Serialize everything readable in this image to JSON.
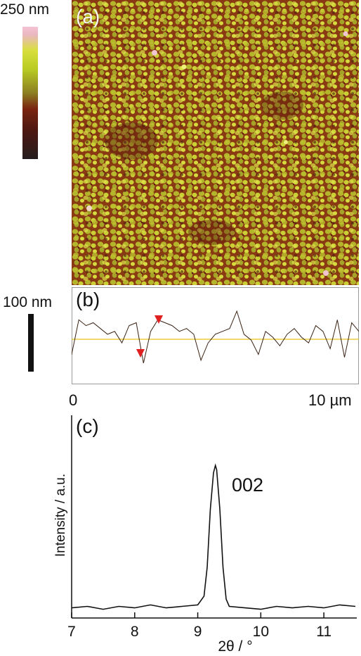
{
  "panel_a": {
    "label": "(a)",
    "colorbar_max_label": "250 nm",
    "colors": {
      "high": "#f6c3d4",
      "mid": "#c8d52c",
      "low": "#7a2510",
      "bottom": "#241d1d"
    }
  },
  "panel_b": {
    "label": "(b)",
    "scale_label": "100 nm",
    "x_start_label": "0",
    "x_end_label": "10 µm",
    "reference_line_color": "#e8c21a",
    "marker_color": "#e02020"
  },
  "panel_c": {
    "label": "(c)",
    "xlabel": "2θ / °",
    "ylabel": "Intensity / a.u.",
    "peak_label": "002"
  },
  "chart_data": [
    {
      "type": "line",
      "title": "",
      "xlabel": "",
      "ylabel": "",
      "x": [
        0,
        0.25,
        0.5,
        0.75,
        1,
        1.25,
        1.5,
        1.75,
        2,
        2.25,
        2.5,
        2.75,
        3,
        3.25,
        3.5,
        3.75,
        4,
        4.25,
        4.5,
        4.75,
        5,
        5.25,
        5.5,
        5.75,
        6,
        6.25,
        6.5,
        6.75,
        7,
        7.25,
        7.5,
        7.75,
        8,
        8.25,
        8.5,
        8.75,
        9,
        9.25,
        9.5,
        9.75,
        10
      ],
      "values": [
        20,
        80,
        70,
        75,
        65,
        55,
        60,
        40,
        70,
        75,
        5,
        60,
        80,
        75,
        70,
        60,
        65,
        55,
        10,
        40,
        55,
        60,
        65,
        95,
        55,
        45,
        20,
        60,
        50,
        35,
        55,
        65,
        50,
        40,
        70,
        60,
        30,
        80,
        15,
        75,
        60
      ],
      "xlim": [
        0,
        10
      ],
      "ylim": [
        0,
        100
      ]
    },
    {
      "type": "line",
      "title": "",
      "xlabel": "2θ / °",
      "ylabel": "Intensity / a.u.",
      "x": [
        7,
        7.25,
        7.5,
        7.75,
        8,
        8.25,
        8.5,
        8.75,
        9,
        9.1,
        9.15,
        9.2,
        9.25,
        9.28,
        9.3,
        9.35,
        9.4,
        9.45,
        9.5,
        9.75,
        10,
        10.25,
        10.5,
        10.75,
        11,
        11.25,
        11.5
      ],
      "values": [
        0.02,
        0.03,
        0.01,
        0.03,
        0.02,
        0.04,
        0.02,
        0.03,
        0.04,
        0.1,
        0.3,
        0.7,
        0.95,
        1.0,
        0.97,
        0.7,
        0.3,
        0.08,
        0.03,
        0.02,
        0.01,
        0.03,
        0.02,
        0.03,
        0.02,
        0.04,
        0.03
      ],
      "xlim": [
        7,
        11.5
      ],
      "ylim": [
        -0.05,
        1.2
      ],
      "x_ticks": [
        "7",
        "8",
        "9",
        "10",
        "11"
      ]
    }
  ]
}
